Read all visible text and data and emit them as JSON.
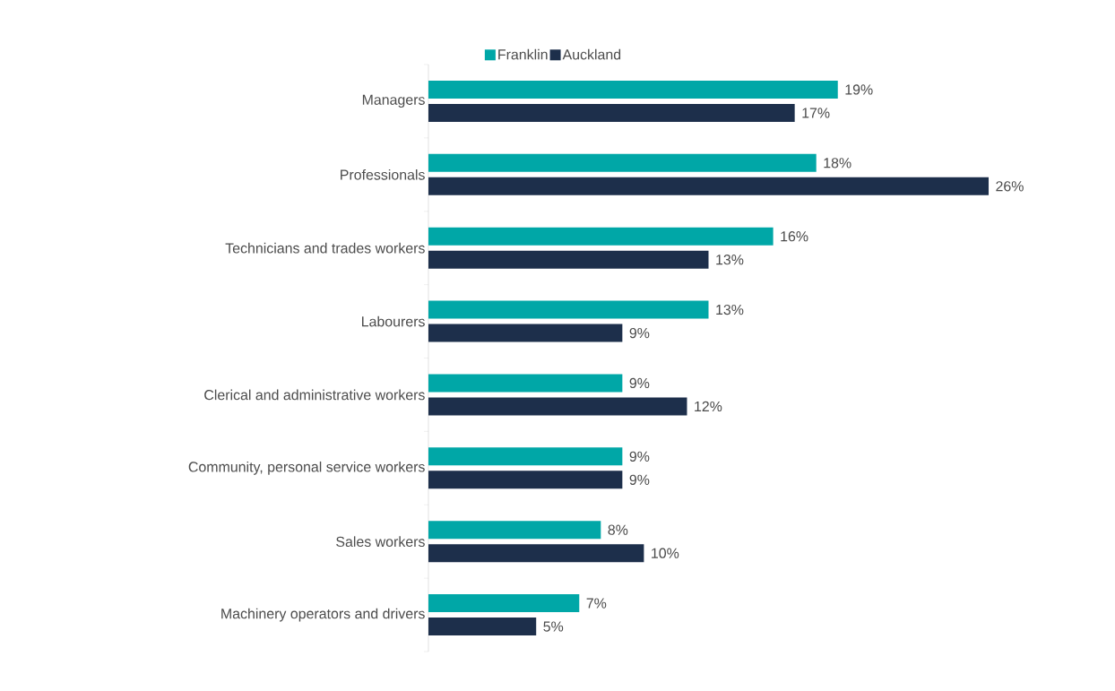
{
  "chart_data": {
    "type": "bar",
    "orientation": "horizontal",
    "legend": "top",
    "categories": [
      "Managers",
      "Professionals",
      "Technicians and trades workers",
      "Labourers",
      "Clerical and administrative workers",
      "Community, personal service workers",
      "Sales workers",
      "Machinery operators and drivers"
    ],
    "series": [
      {
        "name": "Franklin",
        "color": "#00a7a7",
        "values": [
          19,
          18,
          16,
          13,
          9,
          9,
          8,
          7
        ],
        "value_labels": [
          "19%",
          "18%",
          "16%",
          "13%",
          "9%",
          "9%",
          "8%",
          "7%"
        ]
      },
      {
        "name": "Auckland",
        "color": "#1d2f4b",
        "values": [
          17,
          26,
          13,
          9,
          12,
          9,
          10,
          5
        ],
        "value_labels": [
          "17%",
          "26%",
          "13%",
          "9%",
          "12%",
          "9%",
          "10%",
          "5%"
        ]
      }
    ]
  }
}
